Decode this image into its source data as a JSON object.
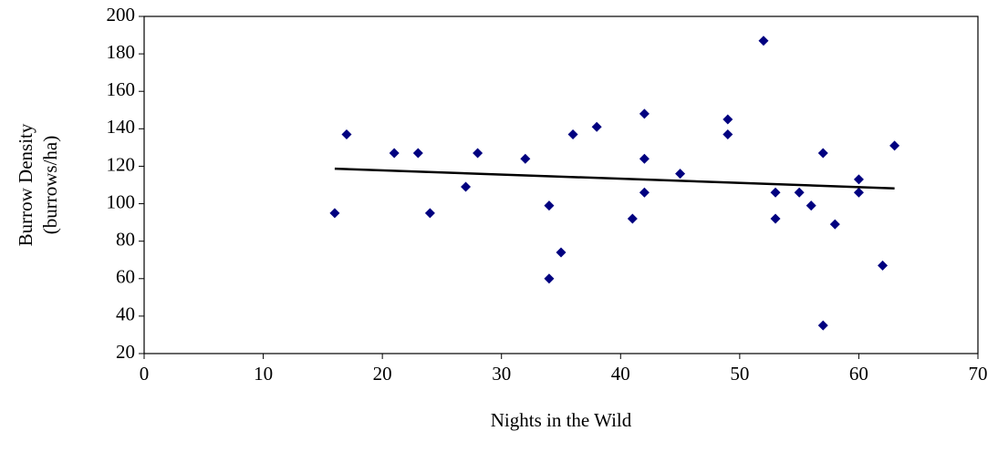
{
  "chart_data": {
    "type": "scatter",
    "xlabel": "Nights in the Wild",
    "ylabel": [
      "Burrow Density",
      "(burrows/ha)"
    ],
    "x": [
      16,
      17,
      21,
      23,
      24,
      27,
      28,
      32,
      34,
      34,
      35,
      36,
      38,
      41,
      42,
      42,
      42,
      45,
      49,
      49,
      52,
      53,
      53,
      55,
      56,
      57,
      57,
      58,
      60,
      60,
      62,
      63
    ],
    "values": [
      95,
      137,
      127,
      127,
      95,
      109,
      127,
      124,
      99,
      60,
      74,
      137,
      141,
      92,
      148,
      124,
      106,
      116,
      145,
      137,
      187,
      106,
      92,
      106,
      99,
      127,
      35,
      89,
      113,
      106,
      67,
      131
    ],
    "color": "#000080",
    "trendline": {
      "x": [
        16,
        63
      ],
      "values": [
        118.7,
        108.2
      ],
      "color": "#000000"
    },
    "xlim": [
      0,
      70
    ],
    "xticks": [
      0,
      10,
      20,
      30,
      40,
      50,
      60,
      70
    ],
    "ylim": [
      20,
      200
    ],
    "yticks": [
      20,
      40,
      60,
      80,
      100,
      120,
      140,
      160,
      180,
      200
    ]
  }
}
